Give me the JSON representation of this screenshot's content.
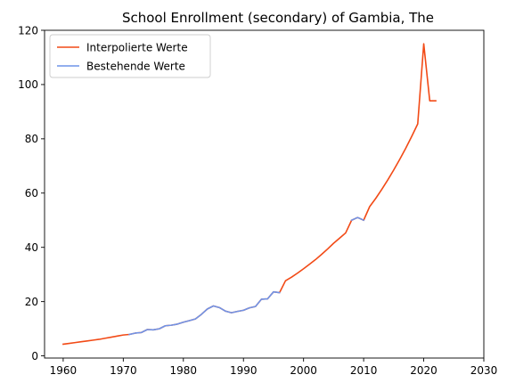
{
  "chart_data": {
    "type": "line",
    "title": "School Enrollment (secondary) of Gambia, The",
    "xlabel": "",
    "ylabel": "",
    "xlim": [
      1956.9,
      2030
    ],
    "ylim": [
      -0.8,
      120
    ],
    "x_ticks": [
      1960,
      1970,
      1980,
      1990,
      2000,
      2010,
      2020,
      2030
    ],
    "y_ticks": [
      0,
      20,
      40,
      60,
      80,
      100,
      120
    ],
    "grid": false,
    "legend_position": "upper-left",
    "series": [
      {
        "name": "Interpolierte Werte",
        "color": "#f24a16",
        "x": [
          1960,
          1961,
          1962,
          1963,
          1964,
          1965,
          1966,
          1967,
          1968,
          1969,
          1970,
          1971,
          1972,
          1973,
          1974,
          1975,
          1976,
          1977,
          1978,
          1979,
          1980,
          1981,
          1982,
          1983,
          1984,
          1985,
          1986,
          1987,
          1988,
          1989,
          1990,
          1991,
          1992,
          1993,
          1994,
          1995,
          1996,
          1997,
          1998,
          1999,
          2000,
          2001,
          2002,
          2003,
          2004,
          2005,
          2006,
          2007,
          2008,
          2009,
          2010,
          2011,
          2012,
          2013,
          2014,
          2015,
          2016,
          2017,
          2018,
          2019,
          2020,
          2021,
          2022
        ],
        "y": [
          4.3,
          4.6,
          4.9,
          5.2,
          5.5,
          5.8,
          6.1,
          6.5,
          6.9,
          7.3,
          7.7,
          7.9,
          8.4,
          8.6,
          9.7,
          9.6,
          10.0,
          11.1,
          11.3,
          11.7,
          12.4,
          13.0,
          13.6,
          15.3,
          17.3,
          18.4,
          17.8,
          16.5,
          15.9,
          16.4,
          16.8,
          17.7,
          18.2,
          20.9,
          21.0,
          23.6,
          23.3,
          27.7,
          29.0,
          30.5,
          32.1,
          33.8,
          35.5,
          37.4,
          39.4,
          41.5,
          43.4,
          45.3,
          50.0,
          51.0,
          50.0,
          55.0,
          58.0,
          61.3,
          64.8,
          68.5,
          72.4,
          76.5,
          80.9,
          85.5,
          115.0,
          94.0,
          94.0
        ]
      },
      {
        "name": "Bestehende Werte",
        "color": "#6f94e8",
        "x": [
          1971,
          1972,
          1973,
          1974,
          1975,
          1976,
          1977,
          1978,
          1979,
          1980,
          1981,
          1982,
          1983,
          1984,
          1985,
          1986,
          1987,
          1988,
          1989,
          1990,
          1991,
          1992,
          1993,
          1994,
          1995,
          1996,
          2008,
          2009,
          2010
        ],
        "y": [
          7.9,
          8.4,
          8.6,
          9.7,
          9.6,
          10.0,
          11.1,
          11.3,
          11.7,
          12.4,
          13.0,
          13.6,
          15.3,
          17.3,
          18.4,
          17.8,
          16.5,
          15.9,
          16.4,
          16.8,
          17.7,
          18.2,
          20.9,
          21.0,
          23.6,
          23.3,
          50.0,
          51.0,
          50.0
        ],
        "gap_after_x": 1996
      }
    ]
  }
}
